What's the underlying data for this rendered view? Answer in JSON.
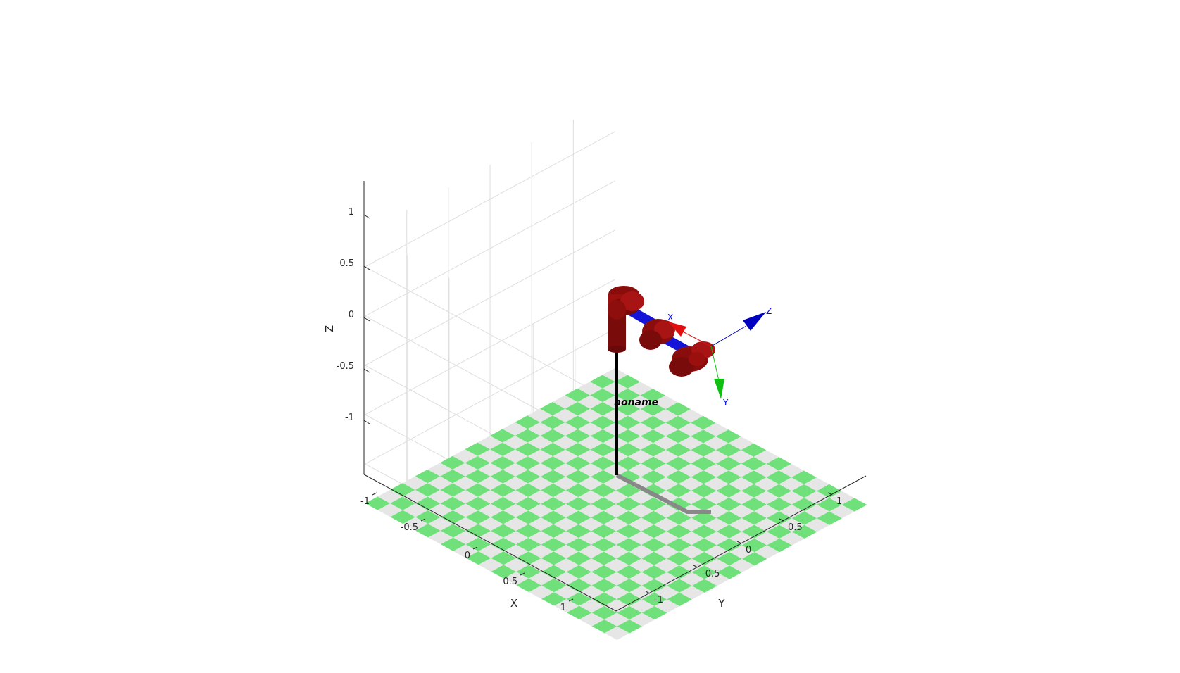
{
  "figure": {
    "robot_name": "noname",
    "axes": {
      "x": {
        "label": "X",
        "ticks": [
          "-1",
          "-0.5",
          "0",
          "0.5",
          "1"
        ]
      },
      "y": {
        "label": "Y",
        "ticks": [
          "1",
          "0.5",
          "0",
          "-0.5",
          "-1"
        ]
      },
      "z": {
        "label": "Z",
        "ticks": [
          "1",
          "0.5",
          "0",
          "-0.5",
          "-1"
        ]
      }
    },
    "end_effector_frame": {
      "x_label": "X",
      "y_label": "Y",
      "z_label": "Z"
    },
    "colors": {
      "floor_a": "#6fe07a",
      "floor_b": "#e6e6e6",
      "grid": "#dedede",
      "axis": "#262626",
      "link": "#9b0f0f",
      "joint_axis": "#1414d8",
      "shadow": "#888888",
      "frame_x": "#e01010",
      "frame_y": "#10c010",
      "frame_z": "#0000c0"
    },
    "grid": "on"
  }
}
